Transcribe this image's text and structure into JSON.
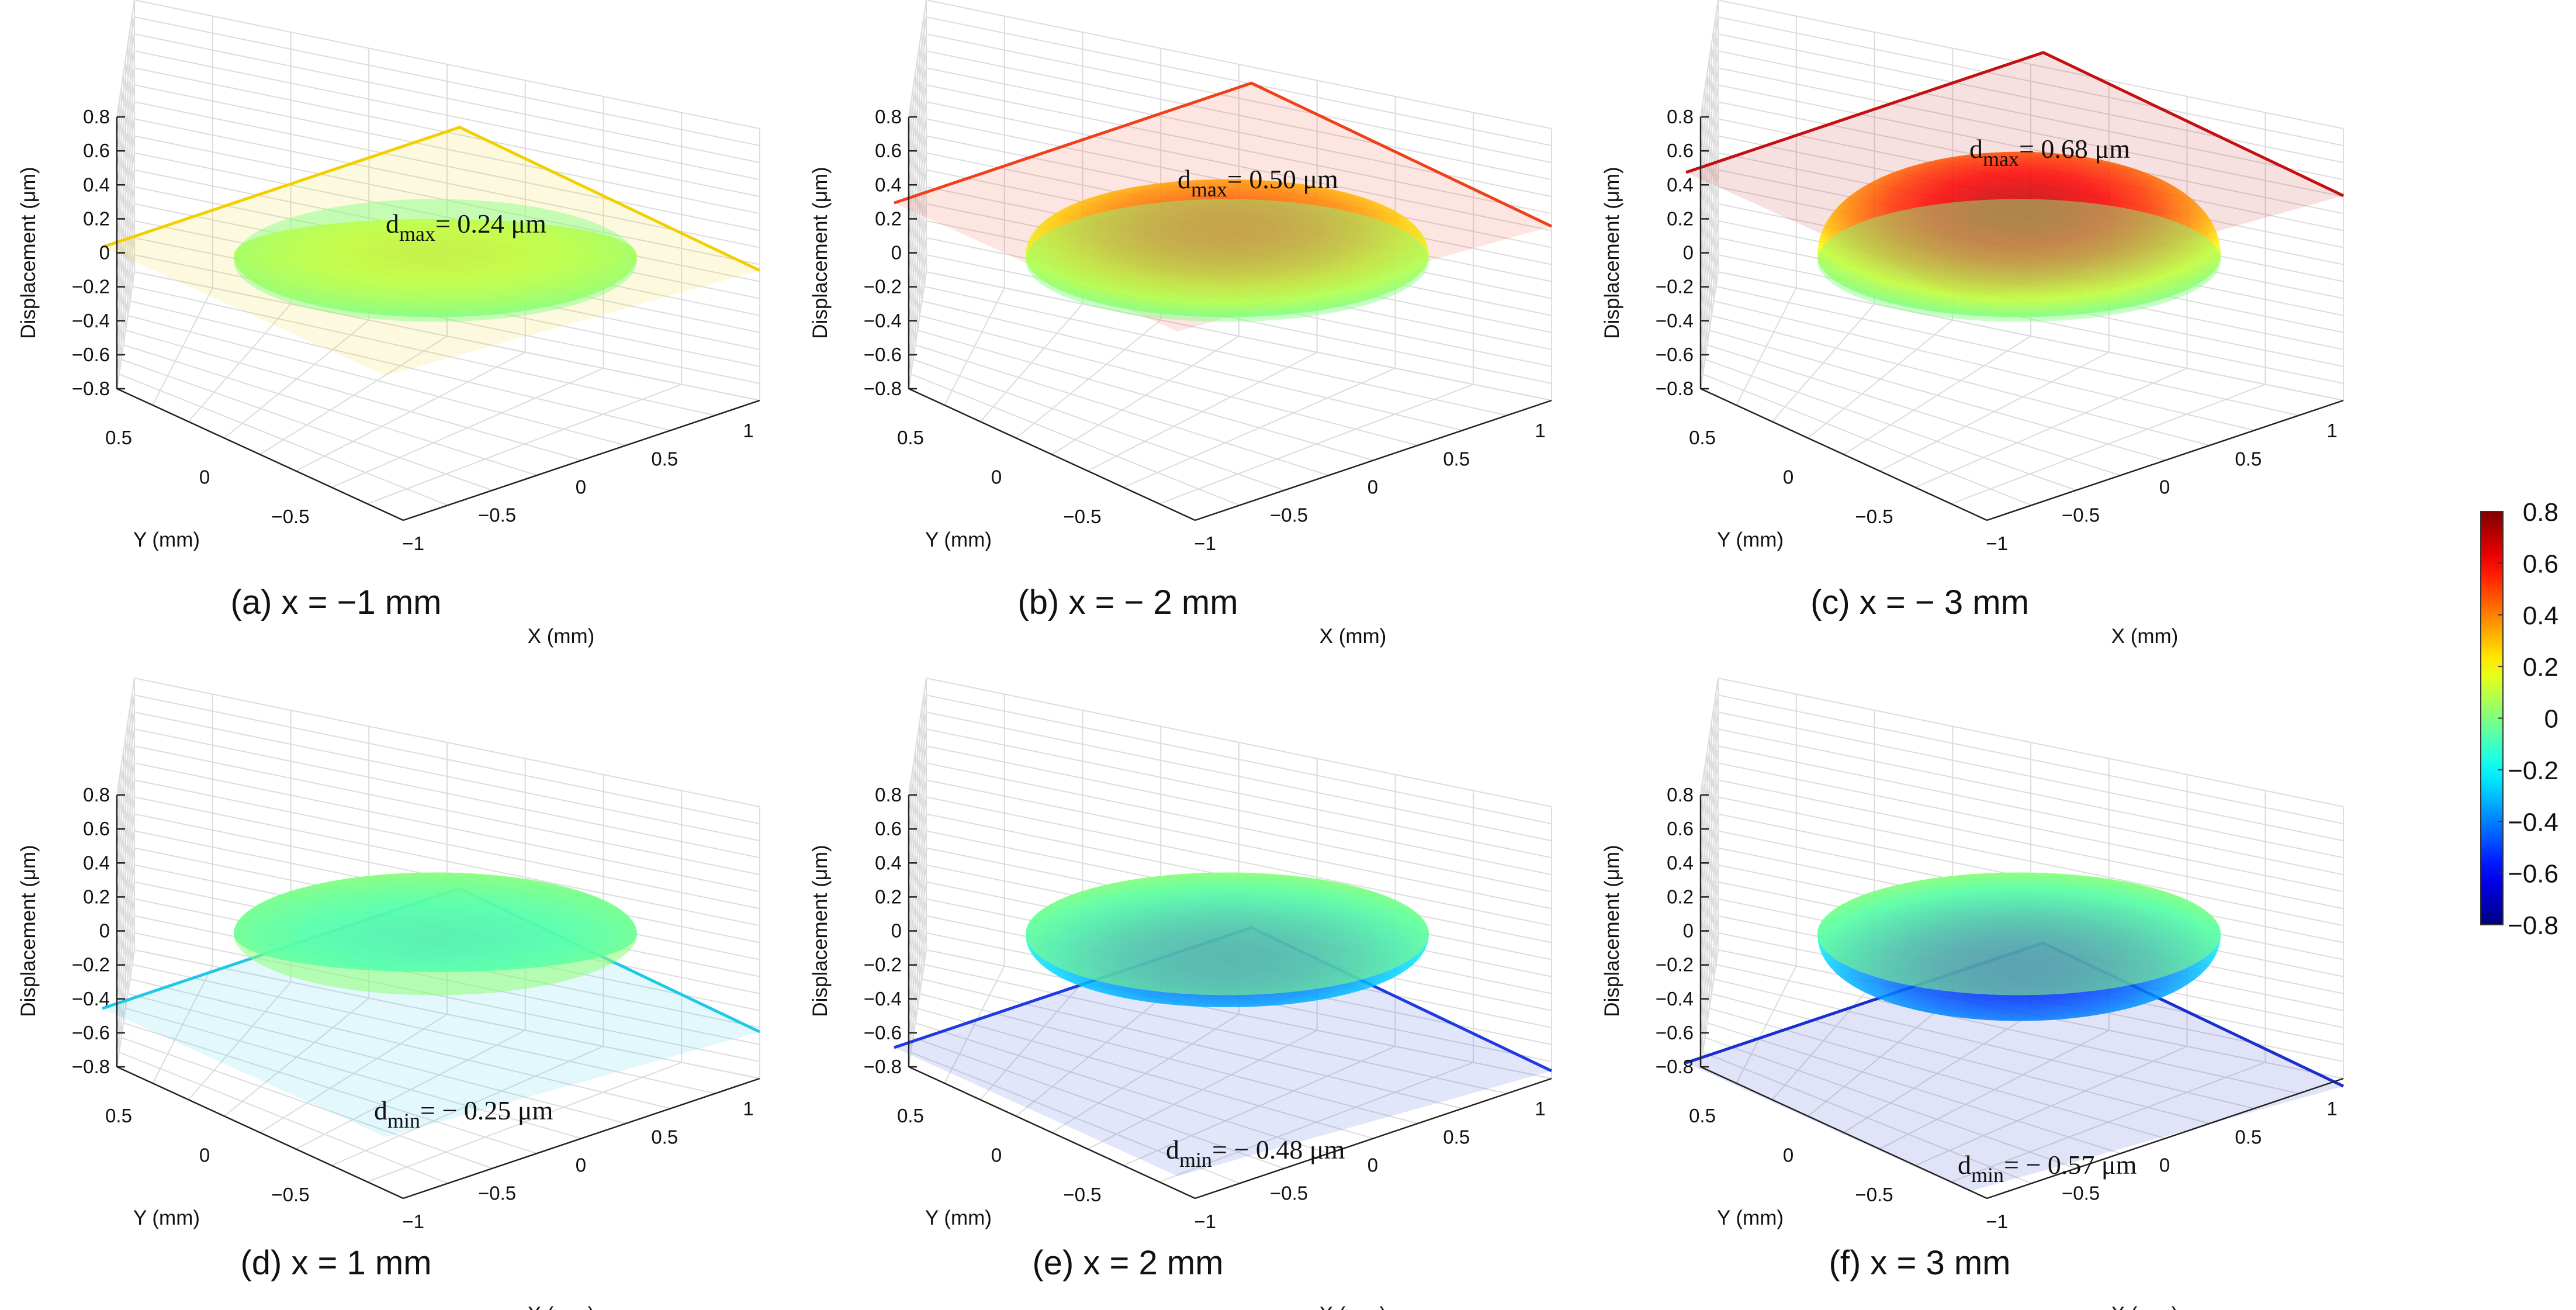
{
  "figure": {
    "z_axis_label": "Displacement (μm)",
    "x_axis_label": "X (mm)",
    "y_axis_label": "Y (mm)",
    "z_ticks": [
      "0.8",
      "0.6",
      "0.4",
      "0.2",
      "0",
      "−0.2",
      "−0.4",
      "−0.6",
      "−0.8"
    ],
    "x_ticks": [
      "−1",
      "−0.5",
      "0",
      "0.5",
      "1"
    ],
    "y_ticks": [
      "0.5",
      "0",
      "−0.5"
    ],
    "colorbar": {
      "ticks": [
        "0.8",
        "0.6",
        "0.4",
        "0.2",
        "0",
        "−0.2",
        "−0.4",
        "−0.6",
        "−0.8"
      ],
      "range": [
        -0.8,
        0.8
      ],
      "colormap": "jet"
    }
  },
  "chart_data": [
    {
      "type": "surface",
      "caption": "(a) x = −1 mm",
      "annotation": {
        "prefix": "d",
        "sub": "max",
        "text": "= 0.24 μm"
      },
      "peak_displacement_um": 0.24,
      "plane_color": "#f2d000",
      "xlim": [
        -1,
        1
      ],
      "ylim": [
        -0.8,
        0.8
      ],
      "zlim": [
        -0.8,
        0.8
      ],
      "grid": true
    },
    {
      "type": "surface",
      "caption": "(b) x = − 2 mm",
      "annotation": {
        "prefix": "d",
        "sub": "max",
        "text": "= 0.50 μm"
      },
      "peak_displacement_um": 0.5,
      "plane_color": "#f0401a",
      "xlim": [
        -1,
        1
      ],
      "ylim": [
        -0.8,
        0.8
      ],
      "zlim": [
        -0.8,
        0.8
      ],
      "grid": true
    },
    {
      "type": "surface",
      "caption": "(c) x = − 3 mm",
      "annotation": {
        "prefix": "d",
        "sub": "max",
        "text": "= 0.68 μm"
      },
      "peak_displacement_um": 0.68,
      "plane_color": "#c41010",
      "xlim": [
        -1,
        1
      ],
      "ylim": [
        -0.8,
        0.8
      ],
      "zlim": [
        -0.8,
        0.8
      ],
      "grid": true
    },
    {
      "type": "surface",
      "caption": "(d) x = 1 mm",
      "annotation": {
        "prefix": "d",
        "sub": "min",
        "text": "= − 0.25 μm"
      },
      "peak_displacement_um": -0.25,
      "plane_color": "#1ec8e6",
      "xlim": [
        -1,
        1
      ],
      "ylim": [
        -0.8,
        0.8
      ],
      "zlim": [
        -0.8,
        0.8
      ],
      "grid": true
    },
    {
      "type": "surface",
      "caption": "(e) x = 2 mm",
      "annotation": {
        "prefix": "d",
        "sub": "min",
        "text": "= − 0.48 μm"
      },
      "peak_displacement_um": -0.48,
      "plane_color": "#1e3ae0",
      "xlim": [
        -1,
        1
      ],
      "ylim": [
        -0.8,
        0.8
      ],
      "zlim": [
        -0.8,
        0.8
      ],
      "grid": true
    },
    {
      "type": "surface",
      "caption": "(f) x = 3 mm",
      "annotation": {
        "prefix": "d",
        "sub": "min",
        "text": "= − 0.57 μm"
      },
      "peak_displacement_um": -0.57,
      "plane_color": "#1a2fcc",
      "xlim": [
        -1,
        1
      ],
      "ylim": [
        -0.8,
        0.8
      ],
      "zlim": [
        -0.8,
        0.8
      ],
      "grid": true
    }
  ]
}
